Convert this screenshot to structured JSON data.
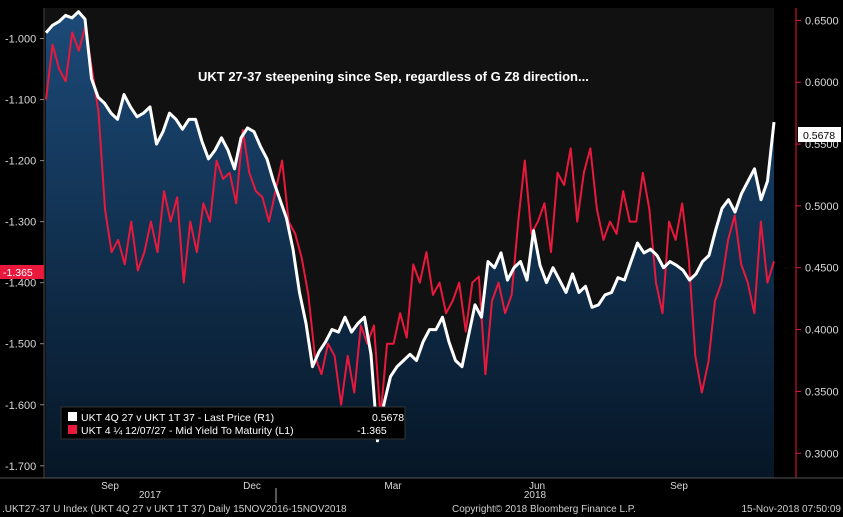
{
  "chart_data": {
    "type": "line",
    "title": "UKT 27-37 steepening since Sep, regardless of G Z8 direction...",
    "x_labels": [
      "Sep",
      "Dec",
      "Mar",
      "Jun",
      "Sep"
    ],
    "year_labels": [
      "2017",
      "2018"
    ],
    "left_axis": {
      "ylim": [
        -1.7,
        -0.95
      ],
      "ticks": [
        "-1.000",
        "-1.100",
        "-1.200",
        "-1.300",
        "-1.400",
        "-1.500",
        "-1.600",
        "-1.700"
      ],
      "current_tag": "-1.365"
    },
    "right_axis": {
      "ylim": [
        0.28,
        0.66
      ],
      "ticks": [
        "0.6500",
        "0.6000",
        "0.5500",
        "0.5000",
        "0.4500",
        "0.4000",
        "0.3500",
        "0.3000"
      ],
      "current_tag": "0.5678"
    },
    "series": [
      {
        "name": "UKT 4Q 27 v UKT 1T 37 - Last Price (R1)",
        "axis": "right",
        "color": "#ffffff",
        "last_value": "0.5678",
        "values": [
          0.64,
          0.646,
          0.649,
          0.654,
          0.652,
          0.657,
          0.651,
          0.603,
          0.588,
          0.583,
          0.575,
          0.57,
          0.59,
          0.58,
          0.572,
          0.575,
          0.58,
          0.55,
          0.56,
          0.575,
          0.57,
          0.562,
          0.57,
          0.57,
          0.552,
          0.538,
          0.545,
          0.555,
          0.545,
          0.53,
          0.555,
          0.563,
          0.56,
          0.548,
          0.538,
          0.52,
          0.505,
          0.49,
          0.465,
          0.43,
          0.405,
          0.37,
          0.382,
          0.39,
          0.4,
          0.398,
          0.41,
          0.398,
          0.405,
          0.41,
          0.38,
          0.31,
          0.34,
          0.362,
          0.37,
          0.375,
          0.38,
          0.375,
          0.39,
          0.4,
          0.4,
          0.41,
          0.39,
          0.375,
          0.37,
          0.395,
          0.42,
          0.41,
          0.455,
          0.45,
          0.462,
          0.44,
          0.45,
          0.455,
          0.44,
          0.48,
          0.452,
          0.438,
          0.45,
          0.44,
          0.43,
          0.445,
          0.43,
          0.435,
          0.418,
          0.42,
          0.428,
          0.43,
          0.442,
          0.44,
          0.455,
          0.47,
          0.462,
          0.465,
          0.46,
          0.45,
          0.455,
          0.452,
          0.448,
          0.44,
          0.445,
          0.455,
          0.46,
          0.48,
          0.498,
          0.505,
          0.495,
          0.51,
          0.52,
          0.53,
          0.505,
          0.52,
          0.5678
        ]
      },
      {
        "name": "UKT 4 ¼ 12/07/27 - Mid Yield To Maturity (L1)",
        "axis": "left",
        "color": "#e8193c",
        "last_value": "-1.365",
        "values": [
          -1.1,
          -1.01,
          -1.05,
          -1.07,
          -0.99,
          -1.02,
          -0.98,
          -1.05,
          -1.12,
          -1.28,
          -1.35,
          -1.33,
          -1.37,
          -1.3,
          -1.38,
          -1.35,
          -1.3,
          -1.35,
          -1.25,
          -1.3,
          -1.26,
          -1.4,
          -1.3,
          -1.35,
          -1.27,
          -1.3,
          -1.2,
          -1.23,
          -1.22,
          -1.27,
          -1.15,
          -1.22,
          -1.25,
          -1.26,
          -1.3,
          -1.25,
          -1.2,
          -1.3,
          -1.32,
          -1.36,
          -1.42,
          -1.52,
          -1.55,
          -1.5,
          -1.52,
          -1.6,
          -1.52,
          -1.58,
          -1.47,
          -1.5,
          -1.47,
          -1.62,
          -1.5,
          -1.5,
          -1.45,
          -1.49,
          -1.37,
          -1.4,
          -1.35,
          -1.42,
          -1.4,
          -1.45,
          -1.43,
          -1.4,
          -1.48,
          -1.4,
          -1.39,
          -1.55,
          -1.43,
          -1.4,
          -1.45,
          -1.42,
          -1.3,
          -1.2,
          -1.32,
          -1.3,
          -1.27,
          -1.35,
          -1.22,
          -1.24,
          -1.18,
          -1.3,
          -1.22,
          -1.18,
          -1.28,
          -1.33,
          -1.3,
          -1.32,
          -1.25,
          -1.3,
          -1.3,
          -1.22,
          -1.28,
          -1.4,
          -1.45,
          -1.3,
          -1.33,
          -1.27,
          -1.36,
          -1.52,
          -1.58,
          -1.53,
          -1.43,
          -1.4,
          -1.33,
          -1.29,
          -1.37,
          -1.4,
          -1.45,
          -1.3,
          -1.4,
          -1.365
        ]
      }
    ],
    "grid": false,
    "legend_position": "bottom-left"
  },
  "footer": {
    "left": ".UKT27-37 U Index (UKT 4Q 27 v UKT 1T 37)  Daily 15NOV2016-15NOV2018",
    "center": "Copyright© 2018 Bloomberg Finance L.P.",
    "right": "15-Nov-2018 07:50:09"
  },
  "colors": {
    "background": "#000000",
    "area_top": "#1c4a78",
    "area_bottom": "#061626",
    "red": "#e8193c",
    "white": "#ffffff",
    "plot_bg": "#111111"
  }
}
